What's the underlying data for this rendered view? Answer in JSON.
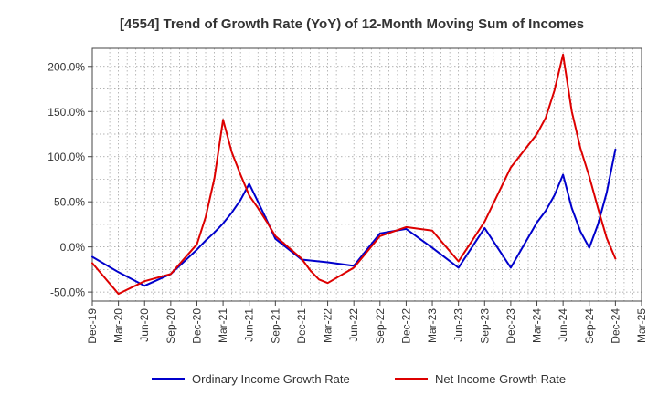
{
  "chart_data": {
    "type": "line",
    "title": "[4554]  Trend of Growth Rate (YoY) of 12-Month Moving Sum of Incomes",
    "ylim": [
      -60,
      220
    ],
    "yticks": [
      -50,
      0,
      50,
      100,
      150,
      200
    ],
    "ytick_labels": [
      "-50.0%",
      "0.0%",
      "50.0%",
      "100.0%",
      "150.0%",
      "200.0%"
    ],
    "xtick_labels": [
      "Dec-19",
      "Mar-20",
      "Jun-20",
      "Sep-20",
      "Dec-20",
      "Mar-21",
      "Jun-21",
      "Sep-21",
      "Dec-21",
      "Mar-22",
      "Jun-22",
      "Sep-22",
      "Dec-22",
      "Mar-23",
      "Jun-23",
      "Sep-23",
      "Dec-23",
      "Mar-24",
      "Jun-24",
      "Sep-24",
      "Dec-24",
      "Mar-25"
    ],
    "grid": true,
    "legend_position": "bottom",
    "series": [
      {
        "name": "Ordinary Income Growth Rate",
        "color": "#0000cc",
        "x": [
          "Dec-19",
          "Mar-20",
          "Jun-20",
          "Sep-20",
          "Dec-20",
          "Jan-21",
          "Feb-21",
          "Mar-21",
          "Apr-21",
          "May-21",
          "Jun-21",
          "Jul-21",
          "Aug-21",
          "Sep-21",
          "Dec-21",
          "Mar-22",
          "Jun-22",
          "Sep-22",
          "Dec-22",
          "Mar-23",
          "Jun-23",
          "Sep-23",
          "Dec-23",
          "Mar-24",
          "Apr-24",
          "May-24",
          "Jun-24",
          "Jul-24",
          "Aug-24",
          "Sep-24",
          "Oct-24",
          "Nov-24",
          "Dec-24"
        ],
        "values": [
          -11,
          -28,
          -43,
          -30,
          -3,
          7,
          16,
          26,
          38,
          52,
          70,
          50,
          30,
          9,
          -14,
          -17,
          -21,
          15,
          20,
          -1,
          -23,
          21,
          -23,
          27,
          40,
          57,
          80,
          43,
          17,
          -1,
          25,
          60,
          108
        ]
      },
      {
        "name": "Net Income Growth Rate",
        "color": "#dd0000",
        "x": [
          "Dec-19",
          "Mar-20",
          "Jun-20",
          "Sep-20",
          "Dec-20",
          "Jan-21",
          "Feb-21",
          "Mar-21",
          "Apr-21",
          "May-21",
          "Jun-21",
          "Jul-21",
          "Aug-21",
          "Sep-21",
          "Dec-21",
          "Jan-22",
          "Feb-22",
          "Mar-22",
          "Jun-22",
          "Sep-22",
          "Dec-22",
          "Mar-23",
          "Jun-23",
          "Sep-23",
          "Dec-23",
          "Mar-24",
          "Apr-24",
          "May-24",
          "Jun-24",
          "Jul-24",
          "Aug-24",
          "Sep-24",
          "Oct-24",
          "Nov-24",
          "Dec-24"
        ],
        "values": [
          -18,
          -52,
          -38,
          -30,
          3,
          33,
          76,
          141,
          105,
          80,
          57,
          43,
          28,
          12,
          -13,
          -26,
          -36,
          -40,
          -23,
          12,
          22,
          18,
          -16,
          28,
          88,
          125,
          143,
          173,
          213,
          150,
          109,
          78,
          43,
          10,
          -13
        ]
      }
    ]
  }
}
